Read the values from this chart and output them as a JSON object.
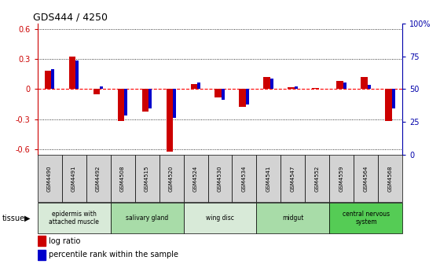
{
  "title": "GDS444 / 4250",
  "samples": [
    "GSM4490",
    "GSM4491",
    "GSM4492",
    "GSM4508",
    "GSM4515",
    "GSM4520",
    "GSM4524",
    "GSM4530",
    "GSM4534",
    "GSM4541",
    "GSM4547",
    "GSM4552",
    "GSM4559",
    "GSM4564",
    "GSM4568"
  ],
  "log_ratio": [
    0.18,
    0.32,
    -0.05,
    -0.32,
    -0.22,
    -0.62,
    0.05,
    -0.08,
    -0.18,
    0.12,
    0.02,
    0.01,
    0.08,
    0.12,
    -0.32
  ],
  "percentile": [
    65,
    72,
    52,
    30,
    35,
    28,
    55,
    42,
    38,
    58,
    52,
    50,
    55,
    53,
    35
  ],
  "tissue_groups": [
    {
      "label": "epidermis with\nattached muscle",
      "start": 0,
      "end": 2,
      "color": "#d8ead8"
    },
    {
      "label": "salivary gland",
      "start": 3,
      "end": 5,
      "color": "#a8dca8"
    },
    {
      "label": "wing disc",
      "start": 6,
      "end": 8,
      "color": "#d8ead8"
    },
    {
      "label": "midgut",
      "start": 9,
      "end": 11,
      "color": "#a8dca8"
    },
    {
      "label": "central nervous\nsystem",
      "start": 12,
      "end": 14,
      "color": "#55cc55"
    }
  ],
  "ylim_left": [
    -0.65,
    0.65
  ],
  "ylim_right": [
    0,
    100
  ],
  "yticks_left": [
    -0.6,
    -0.3,
    0.0,
    0.3,
    0.6
  ],
  "yticks_right": [
    0,
    25,
    50,
    75,
    100
  ],
  "yticklabels_left": [
    "-0.6",
    "-0.3",
    "0",
    "0.3",
    "0.6"
  ],
  "yticklabels_right": [
    "0",
    "25",
    "50",
    "75",
    "100%"
  ],
  "red_color": "#cc0000",
  "blue_color": "#0000cc",
  "sample_bg": "#d3d3d3",
  "left_axis_color": "#cc0000",
  "right_axis_color": "#0000aa"
}
